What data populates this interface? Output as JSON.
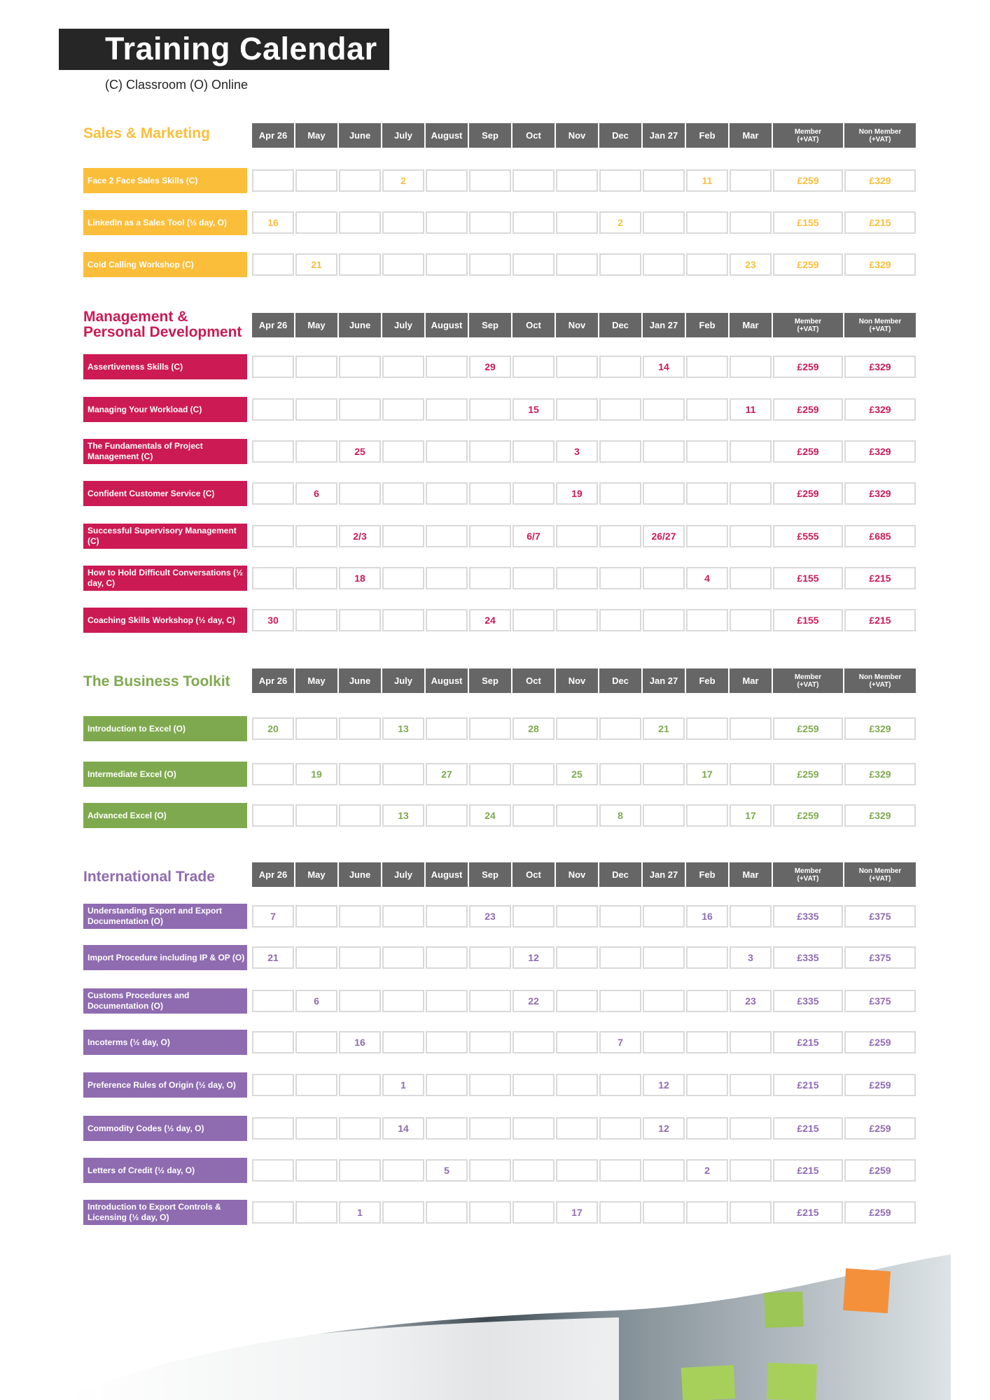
{
  "title": "Training Calendar",
  "legend": "(C) Classroom (O) Online",
  "columns": [
    "Apr 26",
    "May",
    "June",
    "July",
    "August",
    "Sep",
    "Oct",
    "Nov",
    "Dec",
    "Jan 27",
    "Feb",
    "Mar"
  ],
  "price_headers": {
    "member": [
      "Member",
      "(+VAT)"
    ],
    "non_member": [
      "Non Member",
      "(+VAT)"
    ]
  },
  "sections": [
    {
      "name": "Sales & Marketing",
      "color": "#FBBE3A",
      "rows": [
        {
          "course": "Face 2 Face Sales Skills (C)",
          "dates": [
            "",
            "",
            "",
            "2",
            "",
            "",
            "",
            "",
            "",
            "",
            "11",
            ""
          ],
          "member": "£259",
          "non_member": "£329"
        },
        {
          "course": "LinkedIn as a Sales Tool (½ day, O)",
          "dates": [
            "16",
            "",
            "",
            "",
            "",
            "",
            "",
            "",
            "2",
            "",
            "",
            ""
          ],
          "member": "£155",
          "non_member": "£215"
        },
        {
          "course": "Cold Calling Workshop (C)",
          "dates": [
            "",
            "21",
            "",
            "",
            "",
            "",
            "",
            "",
            "",
            "",
            "",
            "23"
          ],
          "member": "£259",
          "non_member": "£329"
        }
      ]
    },
    {
      "name": "Management & Personal Development",
      "color": "#CC1A54",
      "rows": [
        {
          "course": "Assertiveness Skills (C)",
          "dates": [
            "",
            "",
            "",
            "",
            "",
            "29",
            "",
            "",
            "",
            "14",
            "",
            ""
          ],
          "member": "£259",
          "non_member": "£329"
        },
        {
          "course": "Managing Your Workload (C)",
          "dates": [
            "",
            "",
            "",
            "",
            "",
            "",
            "15",
            "",
            "",
            "",
            "",
            "11"
          ],
          "member": "£259",
          "non_member": "£329"
        },
        {
          "course": "The Fundamentals of Project Management (C)",
          "dates": [
            "",
            "",
            "25",
            "",
            "",
            "",
            "",
            "3",
            "",
            "",
            "",
            ""
          ],
          "member": "£259",
          "non_member": "£329"
        },
        {
          "course": "Confident Customer Service (C)",
          "dates": [
            "",
            "6",
            "",
            "",
            "",
            "",
            "",
            "19",
            "",
            "",
            "",
            ""
          ],
          "member": "£259",
          "non_member": "£329"
        },
        {
          "course": "Successful Supervisory Management (C)",
          "dates": [
            "",
            "",
            "2/3",
            "",
            "",
            "",
            "6/7",
            "",
            "",
            "26/27",
            "",
            ""
          ],
          "member": "£555",
          "non_member": "£685"
        },
        {
          "course": "How to Hold Difficult Conversations (½ day, C)",
          "dates": [
            "",
            "",
            "18",
            "",
            "",
            "",
            "",
            "",
            "",
            "",
            "4",
            ""
          ],
          "member": "£155",
          "non_member": "£215"
        },
        {
          "course": "Coaching Skills Workshop (½ day, C)",
          "dates": [
            "30",
            "",
            "",
            "",
            "",
            "24",
            "",
            "",
            "",
            "",
            "",
            ""
          ],
          "member": "£155",
          "non_member": "£215"
        }
      ]
    },
    {
      "name": "The Business Toolkit",
      "color": "#7FA94E",
      "rows": [
        {
          "course": "Introduction to Excel (O)",
          "dates": [
            "20",
            "",
            "",
            "13",
            "",
            "",
            "28",
            "",
            "",
            "21",
            "",
            ""
          ],
          "member": "£259",
          "non_member": "£329"
        },
        {
          "course": "Intermediate Excel (O)",
          "dates": [
            "",
            "19",
            "",
            "",
            "27",
            "",
            "",
            "25",
            "",
            "",
            "17",
            ""
          ],
          "member": "£259",
          "non_member": "£329"
        },
        {
          "course": "Advanced Excel  (O)",
          "dates": [
            "",
            "",
            "",
            "13",
            "",
            "24",
            "",
            "",
            "8",
            "",
            "",
            "17"
          ],
          "member": "£259",
          "non_member": "£329"
        }
      ]
    },
    {
      "name": "International Trade",
      "color": "#8F6BB0",
      "rows": [
        {
          "course": "Understanding Export and Export Documentation (O)",
          "dates": [
            "7",
            "",
            "",
            "",
            "",
            "23",
            "",
            "",
            "",
            "",
            "16",
            ""
          ],
          "member": "£335",
          "non_member": "£375"
        },
        {
          "course": "Import Procedure including IP & OP (O)",
          "dates": [
            "21",
            "",
            "",
            "",
            "",
            "",
            "12",
            "",
            "",
            "",
            "",
            "3"
          ],
          "member": "£335",
          "non_member": "£375"
        },
        {
          "course": "Customs Procedures and Documentation (O)",
          "dates": [
            "",
            "6",
            "",
            "",
            "",
            "",
            "22",
            "",
            "",
            "",
            "",
            "23"
          ],
          "member": "£335",
          "non_member": "£375"
        },
        {
          "course": "Incoterms (½ day, O)",
          "dates": [
            "",
            "",
            "16",
            "",
            "",
            "",
            "",
            "",
            "7",
            "",
            "",
            ""
          ],
          "member": "£215",
          "non_member": "£259"
        },
        {
          "course": "Preference Rules of Origin (½ day, O)",
          "dates": [
            "",
            "",
            "",
            "1",
            "",
            "",
            "",
            "",
            "",
            "12",
            "",
            ""
          ],
          "member": "£215",
          "non_member": "£259"
        },
        {
          "course": "Commodity Codes (½ day, O)",
          "dates": [
            "",
            "",
            "",
            "14",
            "",
            "",
            "",
            "",
            "",
            "12",
            "",
            ""
          ],
          "member": "£215",
          "non_member": "£259"
        },
        {
          "course": "Letters of Credit  (½ day, O)",
          "dates": [
            "",
            "",
            "",
            "",
            "5",
            "",
            "",
            "",
            "",
            "",
            "2",
            ""
          ],
          "member": "£215",
          "non_member": "£259"
        },
        {
          "course": "Introduction to Export Controls & Licensing (½ day, O)",
          "dates": [
            "",
            "",
            "1",
            "",
            "",
            "",
            "",
            "17",
            "",
            "",
            "",
            ""
          ],
          "member": "£215",
          "non_member": "£259"
        }
      ]
    }
  ]
}
